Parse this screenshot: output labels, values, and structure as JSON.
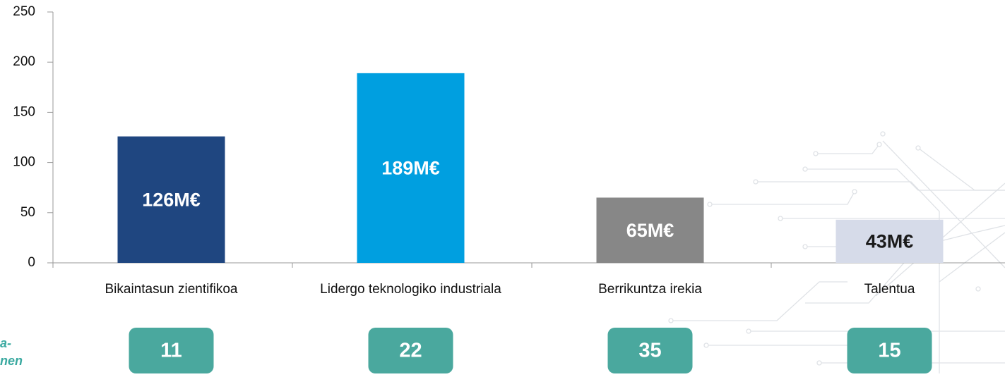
{
  "chart_data": {
    "type": "bar",
    "categories": [
      "Bikaintasun zientifikoa",
      "Lidergo teknologiko industriala",
      "Berrikuntza irekia",
      "Talentua"
    ],
    "values": [
      126,
      189,
      65,
      43
    ],
    "value_labels": [
      "126M€",
      "189M€",
      "65M€",
      "43M€"
    ],
    "colors": [
      "#1f4680",
      "#009fe0",
      "#878787",
      "#d6dbe9"
    ],
    "value_label_colors": [
      "#ffffff",
      "#ffffff",
      "#ffffff",
      "#1a1a1a"
    ],
    "ylim": [
      0,
      250
    ],
    "yticks": [
      0,
      50,
      100,
      150,
      200,
      250
    ],
    "grid": false,
    "counts": [
      11,
      22,
      35,
      15
    ],
    "count_color": "#4aa89e",
    "side_note": [
      "a-",
      "nen"
    ]
  }
}
